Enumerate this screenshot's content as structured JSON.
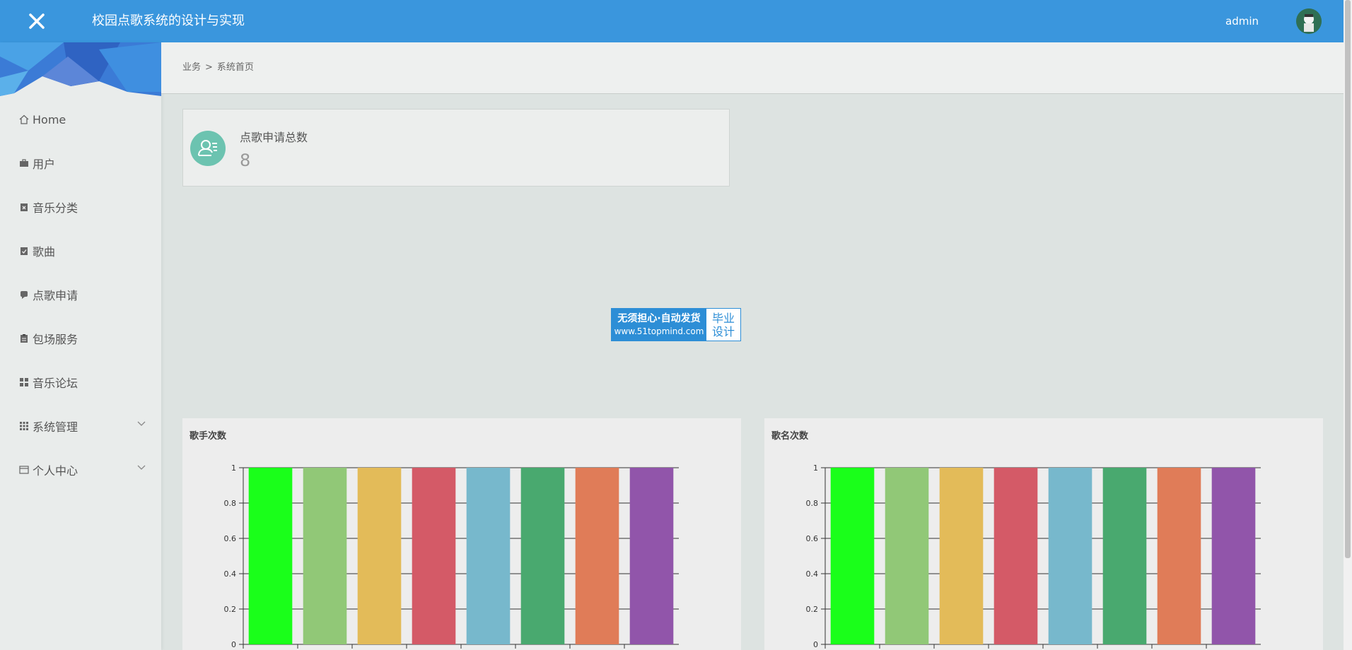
{
  "header": {
    "app_title": "校园点歌系统的设计与实现",
    "user_name": "admin",
    "accent_color": "#3a96dd",
    "close_icon": "close-icon"
  },
  "sidebar": {
    "items": [
      {
        "label": "Home",
        "icon": "home-icon"
      },
      {
        "label": "用户",
        "icon": "briefcase-icon"
      },
      {
        "label": "音乐分类",
        "icon": "clipboard-x-icon"
      },
      {
        "label": "歌曲",
        "icon": "clipboard-check-icon"
      },
      {
        "label": "点歌申请",
        "icon": "chat-icon"
      },
      {
        "label": "包场服务",
        "icon": "clipboard-icon"
      },
      {
        "label": "音乐论坛",
        "icon": "grid-icon"
      },
      {
        "label": "系统管理",
        "icon": "grid-icon",
        "expandable": true
      },
      {
        "label": "个人中心",
        "icon": "window-icon",
        "expandable": true
      }
    ]
  },
  "breadcrumb": {
    "parent": "业务",
    "separator": ">",
    "current": "系统首页"
  },
  "stat": {
    "label": "点歌申请总数",
    "value": "8",
    "icon": "user-list-icon",
    "icon_color": "#6cc3b0"
  },
  "watermark": {
    "line1": "无须担心·自动发货",
    "line2": "www.51topmind.com",
    "right1": "毕业",
    "right2": "设计"
  },
  "chart_data": [
    {
      "type": "bar",
      "title": "歌手次数",
      "categories": [
        "",
        "",
        "",
        "",
        "",
        "",
        "",
        ""
      ],
      "values": [
        1,
        1,
        1,
        1,
        1,
        1,
        1,
        1
      ],
      "colors": [
        "#1aff1a",
        "#91c877",
        "#e3bb59",
        "#d45a67",
        "#77b8cc",
        "#49a96f",
        "#e07c58",
        "#9155aa"
      ],
      "yticks": [
        "0",
        "0.2",
        "0.4",
        "0.6",
        "0.8",
        "1"
      ],
      "ylim": [
        0,
        1
      ],
      "grid": true
    },
    {
      "type": "bar",
      "title": "歌名次数",
      "categories": [
        "",
        "",
        "",
        "",
        "",
        "",
        "",
        ""
      ],
      "values": [
        1,
        1,
        1,
        1,
        1,
        1,
        1,
        1
      ],
      "colors": [
        "#1aff1a",
        "#91c877",
        "#e3bb59",
        "#d45a67",
        "#77b8cc",
        "#49a96f",
        "#e07c58",
        "#9155aa"
      ],
      "yticks": [
        "0",
        "0.2",
        "0.4",
        "0.6",
        "0.8",
        "1"
      ],
      "ylim": [
        0,
        1
      ],
      "grid": true
    }
  ]
}
